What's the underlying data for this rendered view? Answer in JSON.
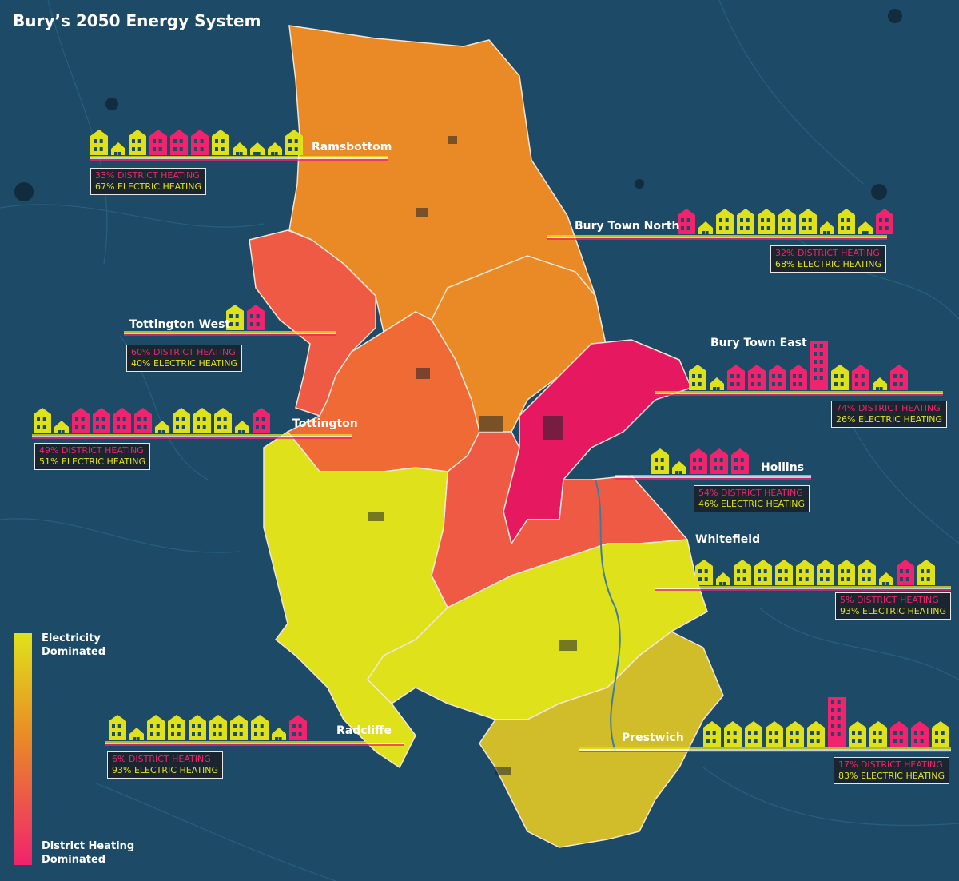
{
  "title": "Bury’s 2050 Energy System",
  "colors": {
    "background": "#1d4a66",
    "district": "#f0236e",
    "electric": "#dfe21a",
    "orange": "#e98a27",
    "red_orange": "#ef5a44",
    "magenta": "#e6185f",
    "olive": "#d1bd2a"
  },
  "legend": {
    "top_label": "Electricity Dominated",
    "bottom_label": "District Heating Dominated"
  },
  "areas": [
    {
      "name": "Ramsbottom",
      "district": "33% DISTRICT HEATING",
      "electric": "67% ELECTRIC HEATING"
    },
    {
      "name": "Bury Town North",
      "district": "32% DISTRICT HEATING",
      "electric": "68% ELECTRIC HEATING"
    },
    {
      "name": "Tottington West",
      "district": "60% DISTRICT HEATING",
      "electric": "40% ELECTRIC HEATING"
    },
    {
      "name": "Bury Town East",
      "district": "74% DISTRICT HEATING",
      "electric": "26% ELECTRIC HEATING"
    },
    {
      "name": "Tottington",
      "district": "49% DISTRICT HEATING",
      "electric": "51% ELECTRIC HEATING"
    },
    {
      "name": "Hollins",
      "district": "54% DISTRICT HEATING",
      "electric": "46% ELECTRIC HEATING"
    },
    {
      "name": "Whitefield",
      "district": "5% DISTRICT HEATING",
      "electric": "93% ELECTRIC HEATING"
    },
    {
      "name": "Radcliffe",
      "district": "6% DISTRICT HEATING",
      "electric": "93% ELECTRIC HEATING"
    },
    {
      "name": "Prestwich",
      "district": "17% DISTRICT HEATING",
      "electric": "83% ELECTRIC HEATING"
    }
  ]
}
